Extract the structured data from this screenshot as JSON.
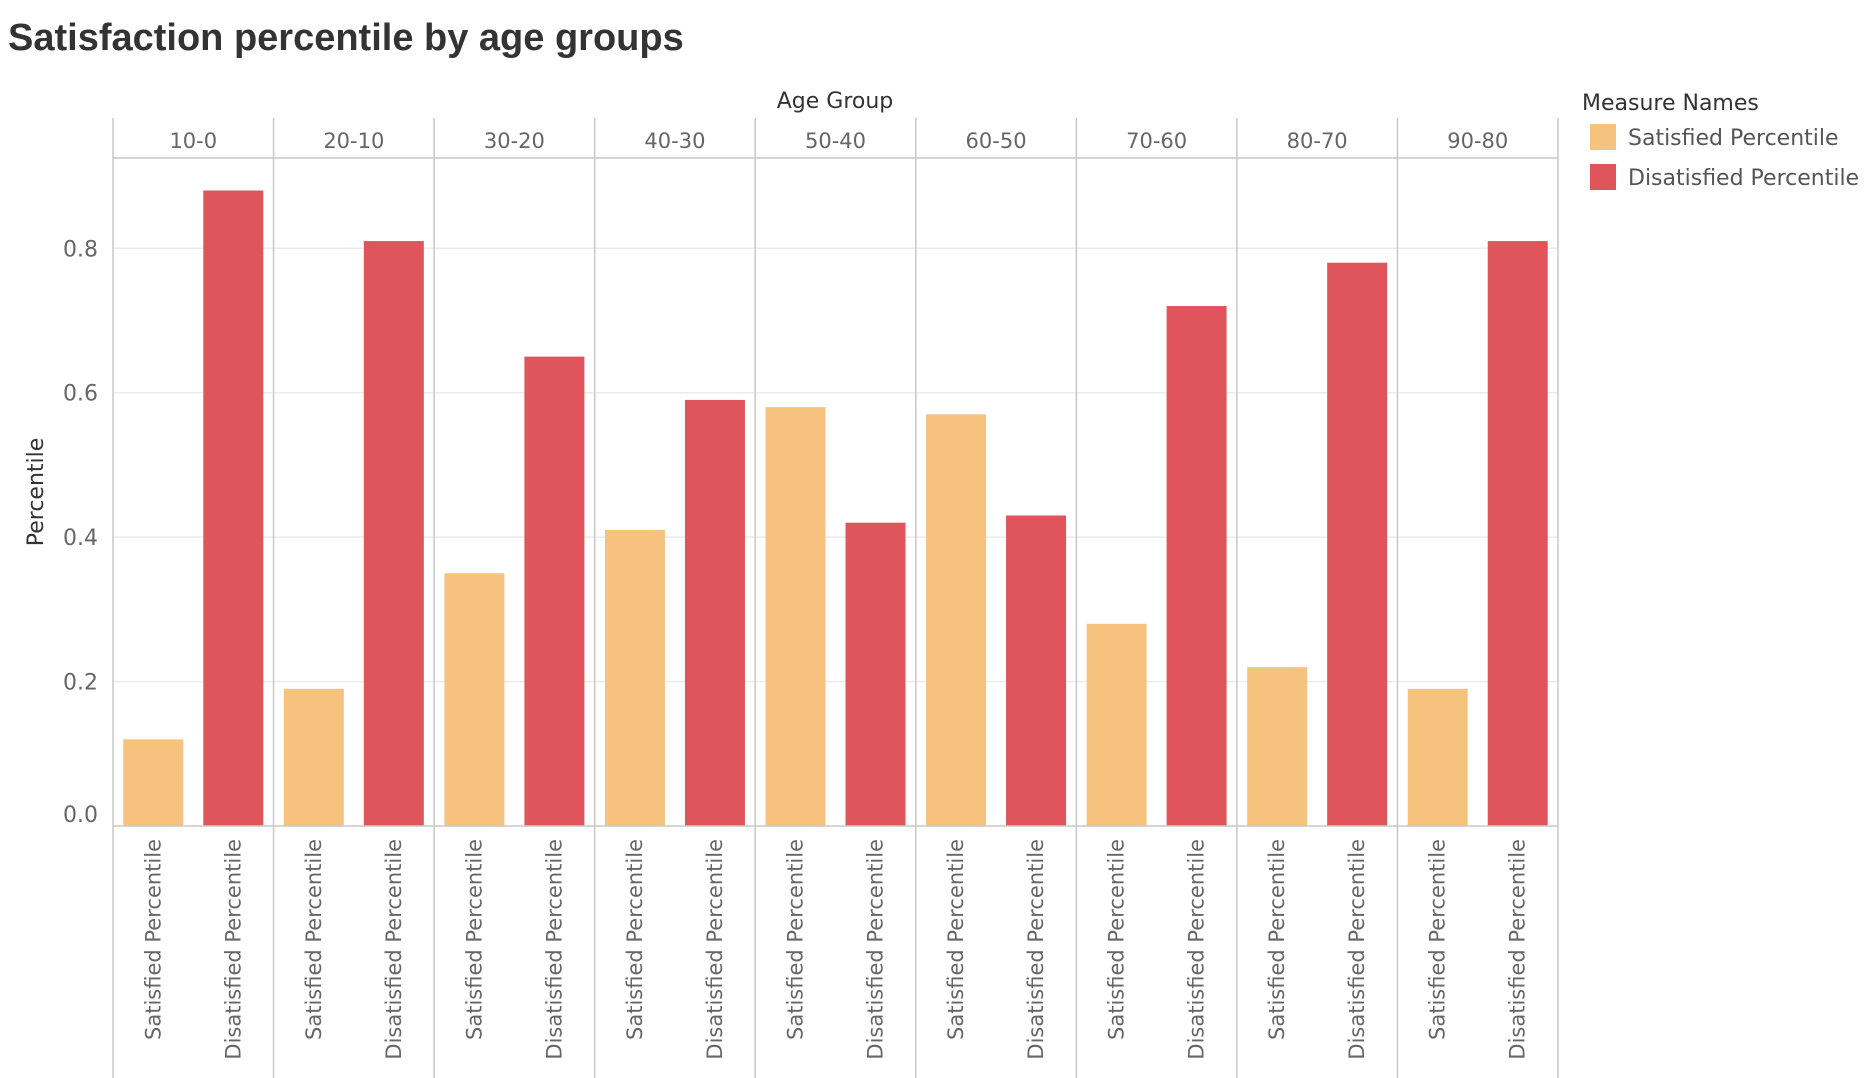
{
  "chart_data": {
    "type": "bar",
    "title": "Satisfaction percentile by age groups",
    "column_header": "Age Group",
    "ylabel": "Percentile",
    "ylim": [
      0,
      0.925
    ],
    "yticks": [
      0.0,
      0.2,
      0.4,
      0.6,
      0.8
    ],
    "ytick_labels": [
      "0.0",
      "0.2",
      "0.4",
      "0.6",
      "0.8"
    ],
    "grid": true,
    "legend_position": "top-right",
    "legend_title": "Measure Names",
    "categories": [
      "10-0",
      "20-10",
      "30-20",
      "40-30",
      "50-40",
      "60-50",
      "70-60",
      "80-70",
      "90-80"
    ],
    "series": [
      {
        "name": "Satisfied Percentile",
        "color": "#F6C37F",
        "values": [
          0.12,
          0.19,
          0.35,
          0.41,
          0.58,
          0.57,
          0.28,
          0.22,
          0.19
        ]
      },
      {
        "name": "Disatisfied Percentile",
        "color": "#E0555B",
        "values": [
          0.88,
          0.81,
          0.65,
          0.59,
          0.42,
          0.43,
          0.72,
          0.78,
          0.81
        ]
      }
    ]
  }
}
